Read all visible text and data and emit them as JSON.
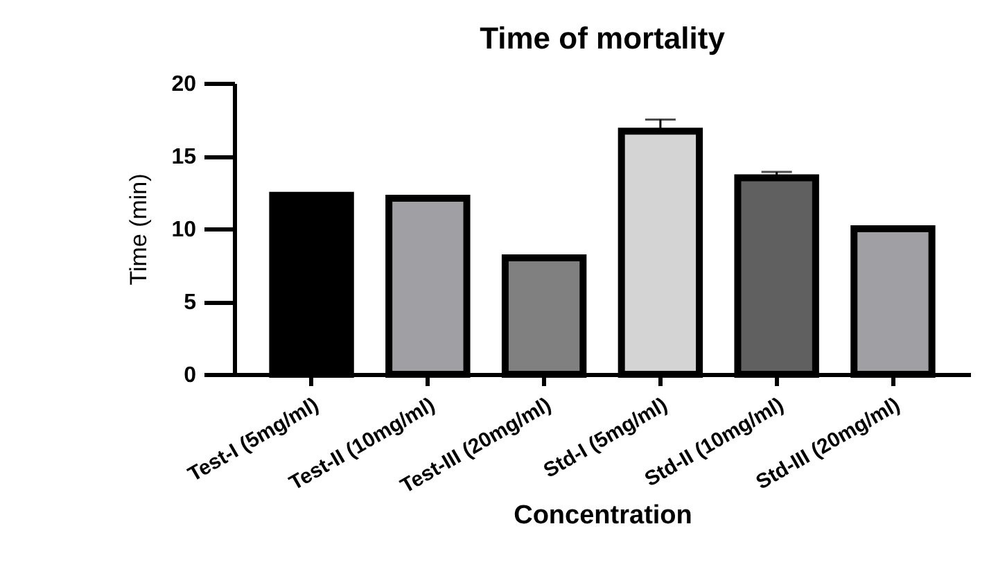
{
  "chart_data": {
    "type": "bar",
    "title": "Time of mortality",
    "xlabel": "Concentration",
    "ylabel": "Time (min)",
    "categories": [
      "Test-I (5mg/ml)",
      "Test-II (10mg/ml)",
      "Test-III (20mg/ml)",
      "Std-I (5mg/ml)",
      "Std-II (10mg/ml)",
      "Std-III (20mg/ml)"
    ],
    "values": [
      12.3,
      12.1,
      8.0,
      16.7,
      13.5,
      10.0
    ],
    "errors": [
      [
        12.3,
        12.4
      ],
      [
        12.1,
        12.2
      ],
      [
        8.0,
        8.1
      ],
      [
        16.7,
        17.5
      ],
      [
        13.5,
        13.9
      ],
      [
        10.0,
        10.1
      ]
    ],
    "colors": [
      "#000000",
      "#a09fa4",
      "#808080",
      "#d4d4d4",
      "#606060",
      "#a09fa4"
    ],
    "ylim": [
      0,
      20
    ],
    "yticks": [
      0,
      5,
      10,
      15,
      20
    ],
    "grid": false
  }
}
